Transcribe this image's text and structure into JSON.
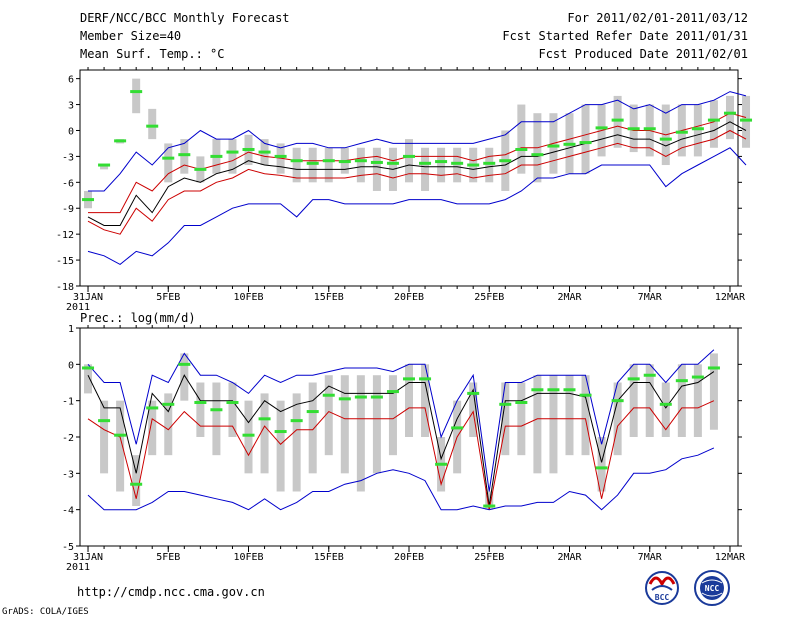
{
  "header": {
    "title": "DERF/NCC/BCC Monthly Forecast",
    "member_size": "Member Size=40",
    "variable": "Mean Surf. Temp.: °C",
    "period": "For 2011/02/01-2011/03/12",
    "start_date": "Fcst Started Refer Date 2011/01/31",
    "produced_date": "Fcst Produced Date 2011/02/01"
  },
  "footer": {
    "url": "http://cmdp.ncc.cma.gov.cn",
    "credit": "GrADS: COLA/IGES",
    "logo_bcc": "BCC",
    "logo_ncc": "NCC"
  },
  "colors": {
    "max_min": "#0000cc",
    "spread": "#cc0000",
    "ensemble_mean": "#000000",
    "box": "#c8c8c8",
    "marker": "#33dd33"
  },
  "chart_data": [
    {
      "type": "line",
      "title": "Mean Surf. Temp.: °C",
      "x_tick_labels": [
        "31JAN",
        "5FEB",
        "10FEB",
        "15FEB",
        "20FEB",
        "25FEB",
        "2MAR",
        "7MAR",
        "12MAR"
      ],
      "x_tick_days": [
        0,
        5,
        10,
        15,
        20,
        25,
        30,
        35,
        40
      ],
      "year_label": "2011",
      "ylim": [
        -18,
        7
      ],
      "y_ticks": [
        6,
        3,
        0,
        -3,
        -6,
        -9,
        -12,
        -15,
        -18
      ],
      "green_markers": [
        -8,
        -4,
        -1.2,
        4.5,
        0.5,
        -3.2,
        -2.8,
        -4.5,
        -3,
        -2.5,
        -2.2,
        -2.5,
        -3,
        -3.5,
        -3.8,
        -3.5,
        -3.6,
        -3.5,
        -3.7,
        -3.8,
        -3,
        -3.8,
        -3.6,
        -3.8,
        -4,
        -3.8,
        -3.5,
        -2.2,
        -2.8,
        -1.8,
        -1.6,
        -1.4,
        0.3,
        1.2,
        0.2,
        0.2,
        -1,
        -0.2,
        0.2,
        1.2,
        2,
        1.2
      ],
      "box_upper": [
        -7,
        -4,
        -1,
        6,
        2.5,
        -1.5,
        -1,
        -3,
        -1,
        -1,
        -0.5,
        -1,
        -1.5,
        -2,
        -2,
        -2,
        -2,
        -2,
        -2,
        -2,
        -1,
        -2,
        -2,
        -2,
        -2,
        -2,
        0,
        3,
        2,
        2,
        2,
        3,
        3,
        4,
        3,
        3,
        3,
        3,
        3,
        3.5,
        4,
        4
      ],
      "box_lower": [
        -9,
        -4.5,
        -1.5,
        2,
        -1,
        -6,
        -5,
        -6,
        -5,
        -5,
        -4,
        -4,
        -5,
        -6,
        -6,
        -6,
        -5,
        -6,
        -7,
        -7,
        -6,
        -7,
        -6,
        -6,
        -6,
        -6,
        -7,
        -5,
        -6,
        -5,
        -5,
        -5,
        -3,
        -2,
        -2.5,
        -3,
        -4,
        -3,
        -3,
        -2,
        -1,
        -2
      ],
      "series": [
        {
          "name": "ensemble_max",
          "color": "#0000cc",
          "values": [
            -7,
            -7,
            -5,
            -2.5,
            -4,
            -2,
            -1.5,
            0,
            -1,
            -1,
            0,
            -1.5,
            -2,
            -1.5,
            -1.5,
            -2,
            -2,
            -1.5,
            -1,
            -1.5,
            -1.5,
            -1.5,
            -1.5,
            -1.5,
            -1.5,
            -1,
            -0.5,
            1,
            1,
            1,
            2,
            3,
            3,
            3.5,
            2.5,
            3,
            2,
            3,
            3,
            3.5,
            4.5,
            4
          ]
        },
        {
          "name": "spread_upper",
          "color": "#cc0000",
          "values": [
            -9.5,
            -9.5,
            -9.5,
            -6,
            -7,
            -5,
            -4,
            -4.5,
            -4,
            -3.5,
            -2.5,
            -3,
            -3.2,
            -3.5,
            -3.5,
            -3.5,
            -3.5,
            -3.2,
            -3,
            -3.5,
            -3,
            -3,
            -3,
            -3,
            -3.5,
            -3,
            -2.8,
            -2,
            -2,
            -1.5,
            -1,
            -0.5,
            0,
            0.5,
            0,
            0,
            -0.5,
            0,
            0.5,
            1,
            2,
            1.5
          ]
        },
        {
          "name": "ensemble_mean",
          "color": "#000000",
          "values": [
            -10,
            -11,
            -11,
            -7.5,
            -9.5,
            -6.5,
            -5.5,
            -6,
            -5,
            -4.5,
            -3.5,
            -4,
            -4.2,
            -4.5,
            -4.5,
            -4.5,
            -4.5,
            -4.2,
            -4.2,
            -4.5,
            -4,
            -4.2,
            -4.2,
            -4.2,
            -4.5,
            -4.2,
            -4,
            -3,
            -3,
            -2.5,
            -2,
            -1.5,
            -1,
            -0.5,
            -1,
            -1,
            -1.8,
            -1,
            -0.5,
            0,
            1,
            0
          ]
        },
        {
          "name": "spread_lower",
          "color": "#cc0000",
          "values": [
            -10.5,
            -11.5,
            -12,
            -9,
            -10.5,
            -8,
            -7,
            -7,
            -6,
            -5.5,
            -4.5,
            -5,
            -5.2,
            -5.5,
            -5.5,
            -5.5,
            -5.5,
            -5.2,
            -5,
            -5.5,
            -5,
            -5,
            -5.2,
            -5,
            -5.5,
            -5.2,
            -5,
            -4,
            -4,
            -3.5,
            -3,
            -2.5,
            -2,
            -1.5,
            -2,
            -2,
            -3,
            -2,
            -1.5,
            -1,
            0,
            -1
          ]
        },
        {
          "name": "ensemble_min",
          "color": "#0000cc",
          "values": [
            -14,
            -14.5,
            -15.5,
            -14,
            -14.5,
            -13,
            -11,
            -11,
            -10,
            -9,
            -8.5,
            -8.5,
            -8.5,
            -10,
            -8,
            -8,
            -8.5,
            -8.5,
            -8.5,
            -8.5,
            -8,
            -8,
            -8,
            -8.5,
            -8.5,
            -8.5,
            -8,
            -7,
            -5.5,
            -5.5,
            -5,
            -5,
            -4,
            -4,
            -4,
            -4,
            -6.5,
            -5,
            -4,
            -3,
            -2,
            -4
          ]
        }
      ]
    },
    {
      "type": "line",
      "title": "Prec.: log(mm/d)",
      "x_tick_labels": [
        "31JAN",
        "5FEB",
        "10FEB",
        "15FEB",
        "20FEB",
        "25FEB",
        "2MAR",
        "7MAR",
        "12MAR"
      ],
      "x_tick_days": [
        0,
        5,
        10,
        15,
        20,
        25,
        30,
        35,
        40
      ],
      "year_label": "2011",
      "ylim": [
        -5,
        1
      ],
      "y_ticks": [
        1,
        0,
        -1,
        -2,
        -3,
        -4,
        -5
      ],
      "green_markers": [
        -0.1,
        -1.55,
        -1.95,
        -3.3,
        -1.2,
        -1.1,
        0,
        -1.05,
        -1.25,
        -1.05,
        -1.95,
        -1.5,
        -1.85,
        -1.55,
        -1.3,
        -0.85,
        -0.95,
        -0.9,
        -0.9,
        -0.75,
        -0.4,
        -0.4,
        -2.75,
        -1.75,
        -0.8,
        -3.9,
        -1.1,
        -1.05,
        -0.7,
        -0.7,
        -0.7,
        -0.85,
        -2.85,
        -1,
        -0.4,
        -0.3,
        -1.1,
        -0.45,
        -0.35,
        -0.1
      ],
      "box_upper": [
        0,
        -1,
        -1,
        -2.5,
        -1,
        -0.8,
        0.3,
        -0.5,
        -0.5,
        -0.5,
        -1,
        -0.8,
        -1,
        -0.8,
        -0.5,
        -0.3,
        -0.3,
        -0.3,
        -0.3,
        -0.3,
        0,
        0,
        -2,
        -1,
        -0.5,
        -3.5,
        -0.5,
        -0.5,
        -0.3,
        -0.3,
        -0.3,
        -0.3,
        -2,
        -0.5,
        0,
        0,
        -0.5,
        0,
        0,
        0.3
      ],
      "box_lower": [
        -0.8,
        -3,
        -3.5,
        -3.9,
        -2.5,
        -2.5,
        -1,
        -2,
        -2.5,
        -2,
        -3,
        -3,
        -3.5,
        -3.5,
        -3,
        -2.5,
        -3,
        -3.5,
        -3,
        -2.5,
        -2,
        -2,
        -3.5,
        -3,
        -2,
        -4,
        -2.5,
        -2.5,
        -3,
        -3,
        -2.5,
        -2.5,
        -3.5,
        -2.5,
        -2,
        -2,
        -2,
        -2,
        -2,
        -1.8
      ],
      "series": [
        {
          "name": "ensemble_max",
          "color": "#0000cc",
          "values": [
            0,
            -0.5,
            -0.5,
            -2.2,
            -0.3,
            -0.5,
            0.3,
            -0.3,
            -0.3,
            -0.5,
            -0.8,
            -0.3,
            -0.5,
            -0.3,
            -0.3,
            -0.2,
            -0.1,
            -0.1,
            -0.1,
            -0.2,
            0,
            0,
            -2,
            -1,
            -0.3,
            -3.5,
            -0.5,
            -0.5,
            -0.3,
            -0.3,
            -0.3,
            -0.3,
            -2.2,
            -0.5,
            0,
            0,
            -0.5,
            0,
            0,
            0.4
          ]
        },
        {
          "name": "ensemble_mean",
          "color": "#000000",
          "values": [
            -0.3,
            -1.2,
            -1.2,
            -3,
            -0.8,
            -1.3,
            -0.3,
            -1,
            -1,
            -1,
            -1.6,
            -1,
            -1.3,
            -1.1,
            -1,
            -0.6,
            -0.8,
            -0.8,
            -0.8,
            -0.8,
            -0.5,
            -0.5,
            -2.6,
            -1.5,
            -0.7,
            -3.9,
            -1,
            -1,
            -0.8,
            -0.8,
            -0.8,
            -0.9,
            -2.7,
            -1,
            -0.5,
            -0.5,
            -1.2,
            -0.6,
            -0.5,
            -0.2
          ]
        },
        {
          "name": "spread_lower",
          "color": "#cc0000",
          "values": [
            -1.5,
            -1.8,
            -2,
            -3.7,
            -1.5,
            -1.8,
            -1.3,
            -1.7,
            -1.7,
            -1.7,
            -2.5,
            -1.7,
            -2.2,
            -1.8,
            -1.8,
            -1.3,
            -1.5,
            -1.5,
            -1.5,
            -1.5,
            -1.2,
            -1.2,
            -3.3,
            -2,
            -1.3,
            -4,
            -1.7,
            -1.7,
            -1.5,
            -1.5,
            -1.5,
            -1.5,
            -3.7,
            -1.7,
            -1.2,
            -1.2,
            -1.8,
            -1.2,
            -1.2,
            -1
          ]
        },
        {
          "name": "ensemble_min",
          "color": "#0000cc",
          "values": [
            -3.6,
            -4,
            -4,
            -4,
            -3.8,
            -3.5,
            -3.5,
            -3.6,
            -3.7,
            -3.8,
            -4,
            -3.7,
            -4,
            -3.8,
            -3.5,
            -3.5,
            -3.3,
            -3.2,
            -3,
            -2.9,
            -3,
            -3.2,
            -4,
            -4,
            -3.9,
            -4,
            -3.9,
            -3.9,
            -3.8,
            -3.8,
            -3.5,
            -3.6,
            -4,
            -3.6,
            -3,
            -3,
            -2.9,
            -2.6,
            -2.5,
            -2.3
          ]
        }
      ]
    }
  ]
}
